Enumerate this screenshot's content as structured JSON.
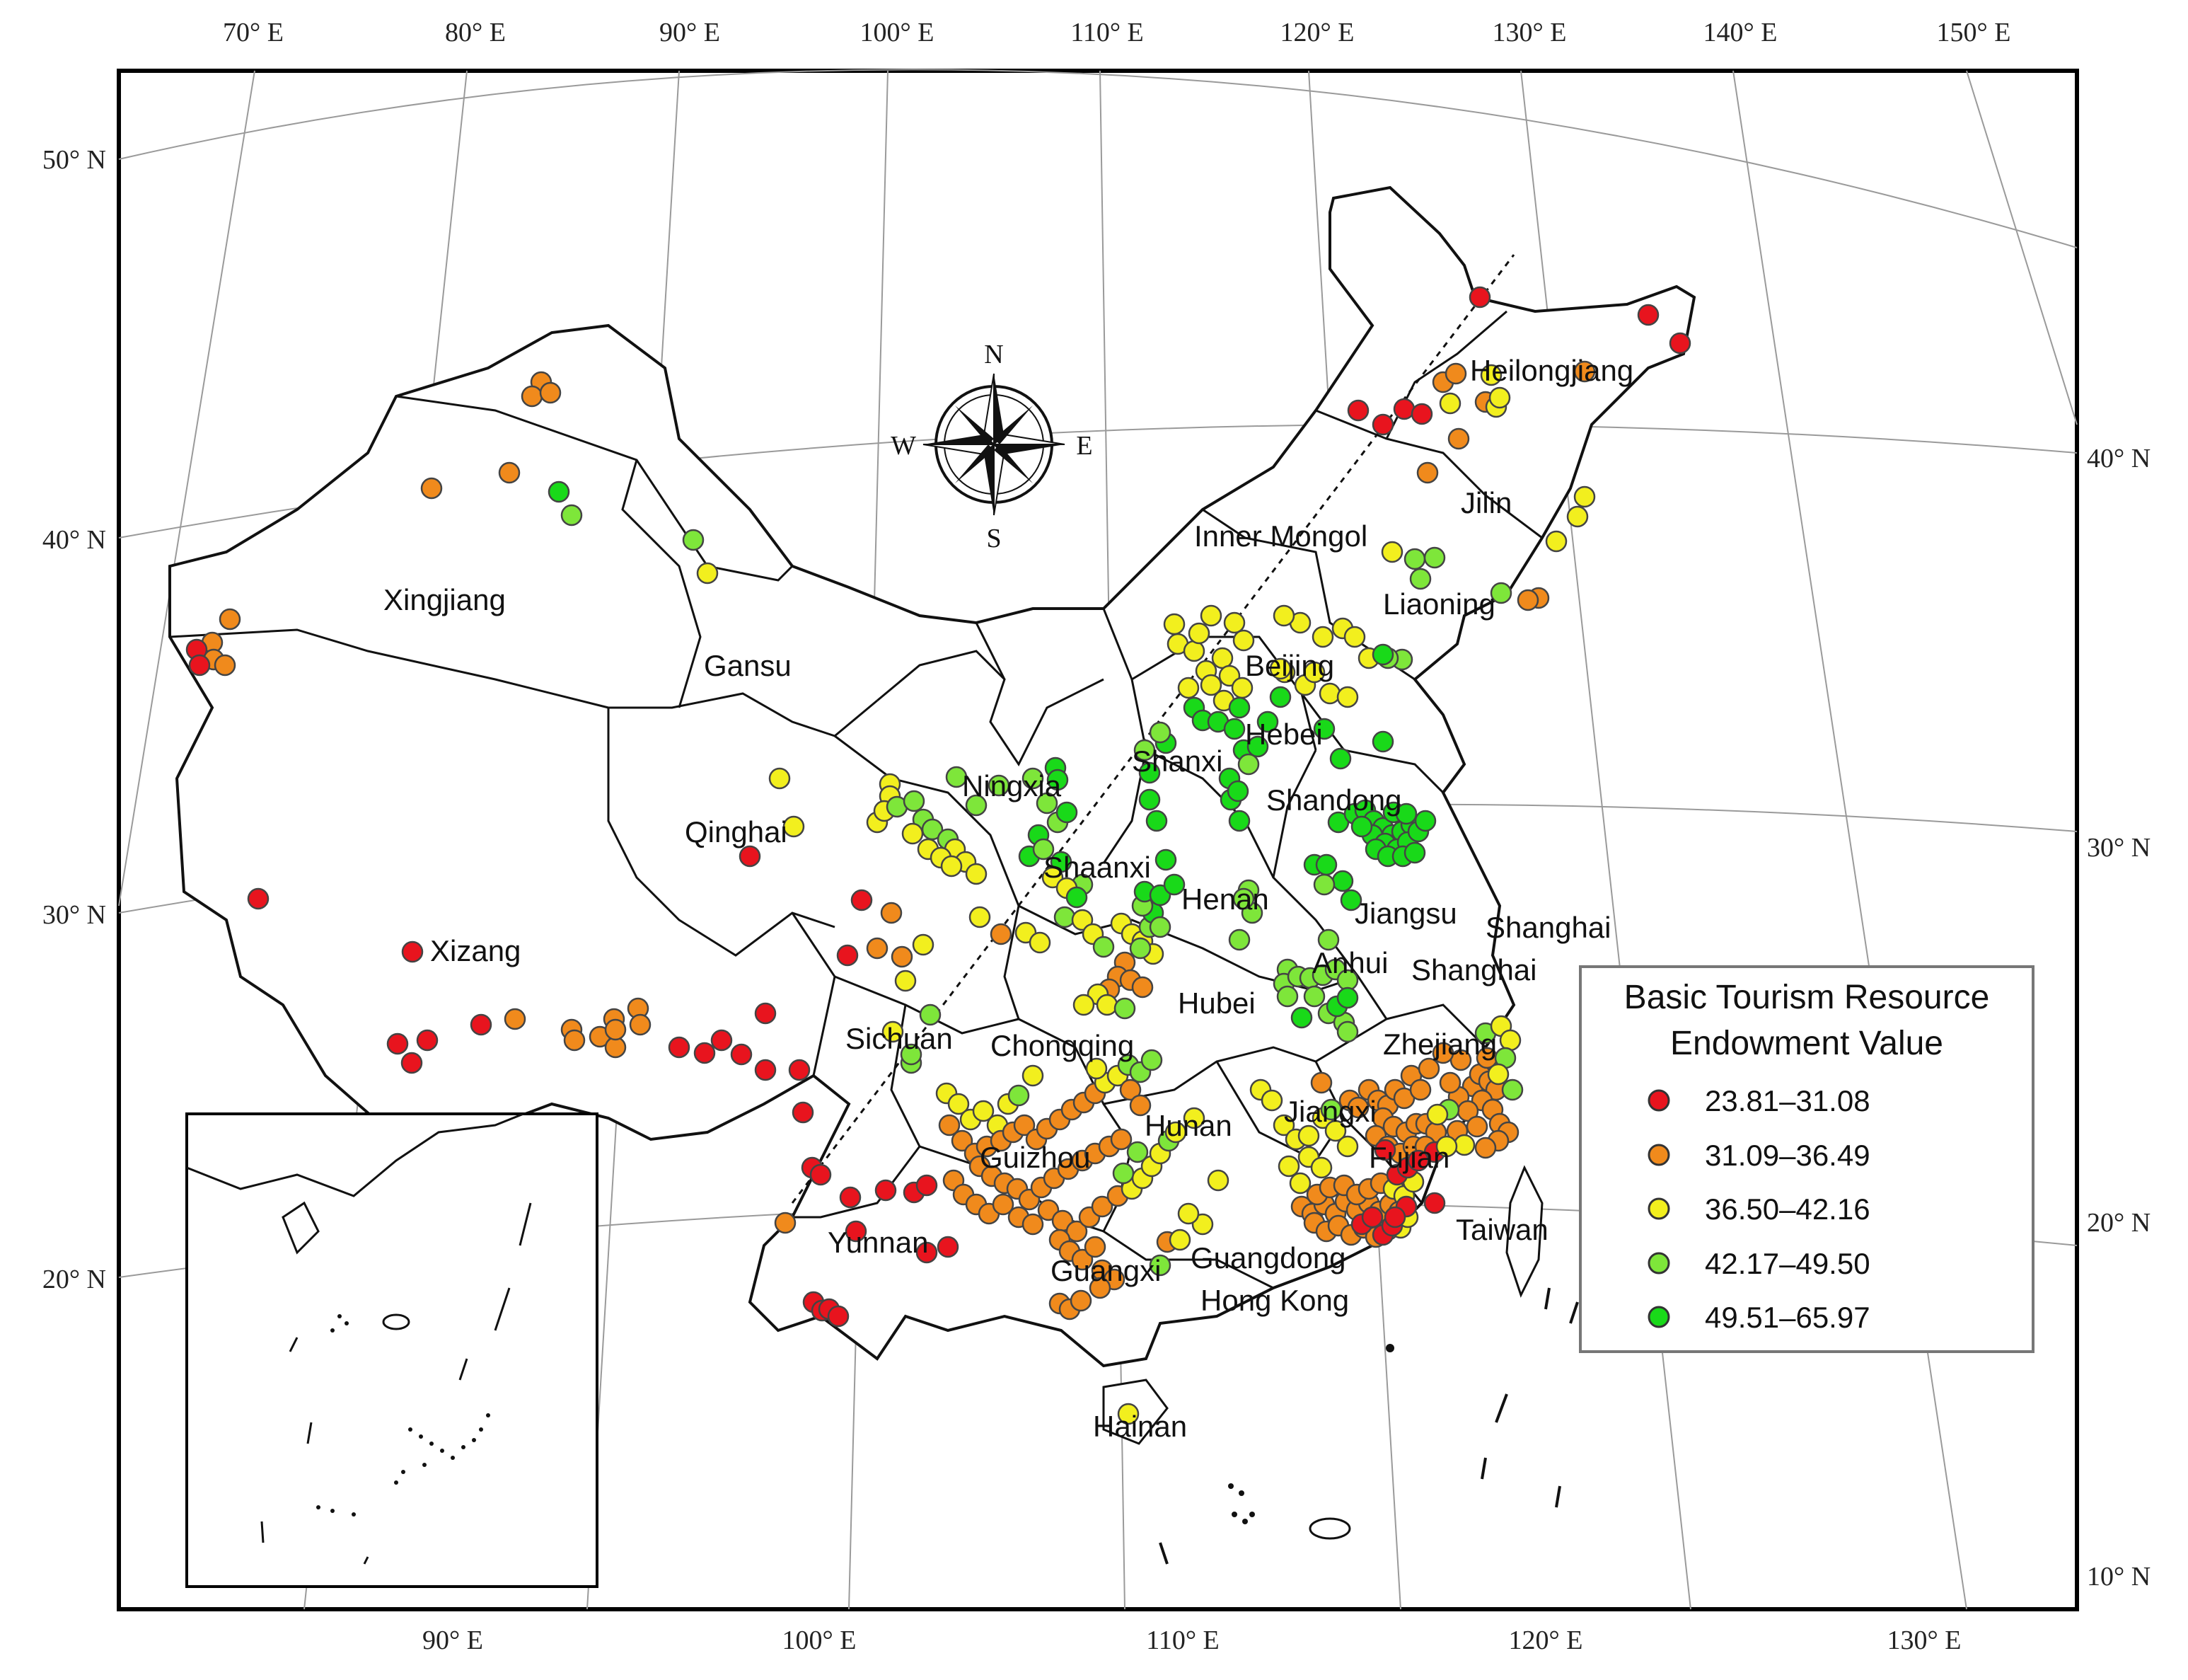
{
  "axes": {
    "top_lon_labels": [
      "70° E",
      "80° E",
      "90° E",
      "100° E",
      "110° E",
      "120° E",
      "130° E",
      "140° E",
      "150° E"
    ],
    "bottom_lon_labels": [
      "90° E",
      "100° E",
      "110° E",
      "120° E",
      "130° E"
    ],
    "left_lat_labels": [
      "50° N",
      "40° N",
      "30° N",
      "20° N"
    ],
    "right_lat_labels": [
      "40° N",
      "30° N",
      "20° N",
      "10° N"
    ]
  },
  "compass": {
    "n": "N",
    "s": "S",
    "e": "E",
    "w": "W"
  },
  "provinces": [
    "Heilongjiang",
    "Jilin",
    "Inner Mongol",
    "Liaoning",
    "Beijing",
    "Hebei",
    "Xingjiang",
    "Gansu",
    "Ningxia",
    "Shanxi",
    "Shandong",
    "Qinghai",
    "Shaanxi",
    "Henan",
    "Jiangsu",
    "Shanghai",
    "Shanghai",
    "Xizang",
    "Anhui",
    "Hubei",
    "Sichuan",
    "Chongqing",
    "Zhejiang",
    "Hunan",
    "Jiangxi",
    "Guizhou",
    "Fujian",
    "Yunnan",
    "Guangxi",
    "Guangdong",
    "Hong Kong",
    "Taiwan",
    "Hainan"
  ],
  "legend": {
    "title_line1": "Basic Tourism Resource",
    "title_line2": "Endowment Value",
    "classes": [
      {
        "label": "23.81–31.08",
        "color": "#e8141e"
      },
      {
        "label": "31.09–36.49",
        "color": "#f08a1c"
      },
      {
        "label": "36.50–42.16",
        "color": "#f2ef1e"
      },
      {
        "label": "42.17–49.50",
        "color": "#7ee63a"
      },
      {
        "label": "49.51–65.97",
        "color": "#19d919"
      }
    ]
  }
}
